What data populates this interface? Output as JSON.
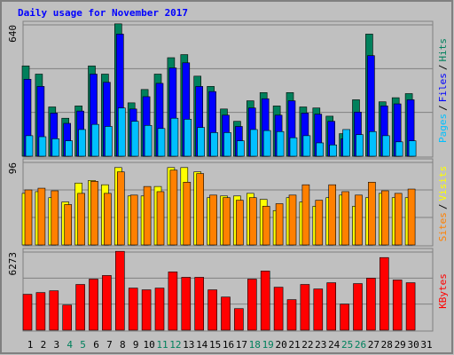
{
  "title": "Daily usage for November 2017",
  "categories": [
    "1",
    "2",
    "3",
    "4",
    "5",
    "6",
    "7",
    "8",
    "9",
    "10",
    "11",
    "12",
    "13",
    "14",
    "15",
    "16",
    "17",
    "18",
    "19",
    "20",
    "21",
    "22",
    "23",
    "24",
    "25",
    "26",
    "27",
    "28",
    "29",
    "30",
    "31"
  ],
  "weekend_days": [
    4,
    5,
    11,
    12,
    18,
    19,
    25,
    26
  ],
  "weekend_color": "#00805c",
  "legend_separator": "/",
  "chart_data": [
    {
      "type": "bar",
      "ylim": [
        0,
        640
      ],
      "yticks": [
        640
      ],
      "series": [
        {
          "name": "Hits",
          "color": "#00805c",
          "values": [
            440,
            400,
            240,
            185,
            245,
            440,
            400,
            645,
            260,
            325,
            400,
            480,
            495,
            390,
            340,
            230,
            170,
            270,
            310,
            245,
            310,
            240,
            235,
            195,
            110,
            275,
            595,
            265,
            285,
            305,
            null
          ]
        },
        {
          "name": "Files",
          "color": "#0000ff",
          "values": [
            375,
            340,
            210,
            160,
            220,
            400,
            360,
            595,
            230,
            290,
            355,
            430,
            455,
            340,
            315,
            200,
            145,
            235,
            280,
            200,
            270,
            210,
            205,
            170,
            85,
            215,
            490,
            245,
            255,
            275,
            null
          ]
        },
        {
          "name": "Pages",
          "color": "#00c0ff",
          "values": [
            100,
            95,
            85,
            75,
            130,
            155,
            145,
            235,
            170,
            150,
            135,
            185,
            180,
            140,
            115,
            115,
            75,
            130,
            125,
            120,
            90,
            100,
            65,
            55,
            130,
            105,
            120,
            100,
            70,
            75,
            null
          ]
        }
      ]
    },
    {
      "type": "bar",
      "ylim": [
        0,
        96
      ],
      "yticks": [
        96
      ],
      "series": [
        {
          "name": "Visits",
          "color": "#ffff00",
          "values": [
            60,
            62,
            55,
            50,
            72,
            75,
            70,
            90,
            57,
            57,
            68,
            90,
            90,
            85,
            55,
            57,
            57,
            60,
            53,
            40,
            55,
            50,
            45,
            55,
            58,
            45,
            55,
            60,
            55,
            55,
            null
          ]
        },
        {
          "name": "Sites",
          "color": "#ff8000",
          "values": [
            64,
            66,
            63,
            47,
            60,
            74,
            60,
            85,
            58,
            68,
            62,
            87,
            73,
            83,
            58,
            55,
            52,
            55,
            45,
            48,
            58,
            70,
            52,
            70,
            62,
            58,
            73,
            63,
            60,
            65,
            null
          ]
        }
      ]
    },
    {
      "type": "bar",
      "ylim": [
        0,
        6273
      ],
      "yticks": [
        6273
      ],
      "series": [
        {
          "name": "KBytes",
          "color": "#ff0000",
          "values": [
            2880,
            3020,
            3165,
            2015,
            3670,
            4100,
            4390,
            6330,
            3380,
            3240,
            3380,
            4680,
            4245,
            4245,
            3240,
            2660,
            1730,
            4100,
            4750,
            3450,
            2450,
            3670,
            3310,
            3810,
            2090,
            3740,
            4175,
            5830,
            4030,
            3810,
            null
          ]
        }
      ]
    }
  ]
}
